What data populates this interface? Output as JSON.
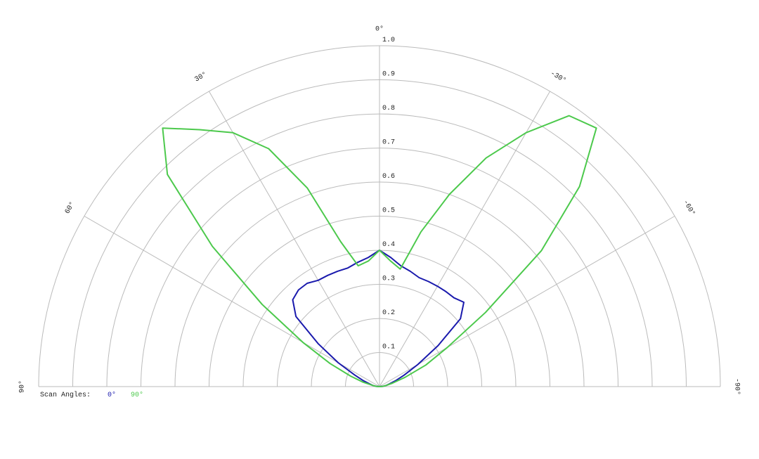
{
  "chart_data": {
    "type": "polar",
    "theta": [
      -90,
      -85,
      -80,
      -75,
      -70,
      -65,
      -60,
      -55,
      -50,
      -45,
      -40,
      -35,
      -30,
      -25,
      -20,
      -15,
      -10,
      -5,
      0,
      5,
      10,
      15,
      20,
      25,
      30,
      35,
      40,
      45,
      50,
      55,
      60,
      65,
      70,
      75,
      80,
      85,
      90
    ],
    "thetaticks": [
      {
        "value": 0,
        "label": "0°"
      },
      {
        "value": 30,
        "label": "30°"
      },
      {
        "value": -30,
        "label": "-30°"
      },
      {
        "value": 60,
        "label": "60°"
      },
      {
        "value": -60,
        "label": "-60°"
      },
      {
        "value": 90,
        "label": "90°"
      },
      {
        "value": -90,
        "label": "-90°"
      }
    ],
    "rlim": [
      0,
      1
    ],
    "rticks": [
      0.1,
      0.2,
      0.3,
      0.4,
      0.5,
      0.6,
      0.7,
      0.8,
      0.9,
      {
        "value": 1,
        "label": "1.0"
      }
    ],
    "legend_title": "Scan Angles:",
    "series": [
      {
        "name": "0°",
        "color": "#1a1aad",
        "values": [
          0,
          0.01,
          0.02,
          0.03,
          0.05,
          0.08,
          0.13,
          0.21,
          0.31,
          0.35,
          0.34,
          0.34,
          0.34,
          0.34,
          0.34,
          0.35,
          0.36,
          0.38,
          0.4,
          0.38,
          0.37,
          0.36,
          0.36,
          0.36,
          0.36,
          0.37,
          0.37,
          0.36,
          0.32,
          0.22,
          0.14,
          0.08,
          0.05,
          0.03,
          0.02,
          0.01,
          0
        ]
      },
      {
        "name": "90°",
        "color": "#4cc94c",
        "values": [
          0,
          0.01,
          0.02,
          0.04,
          0.08,
          0.15,
          0.23,
          0.38,
          0.62,
          0.83,
          0.99,
          0.97,
          0.86,
          0.74,
          0.6,
          0.47,
          0.35,
          0.37,
          0.4,
          0.37,
          0.36,
          0.44,
          0.62,
          0.77,
          0.86,
          0.92,
          0.99,
          0.88,
          0.64,
          0.42,
          0.26,
          0.16,
          0.09,
          0.05,
          0.02,
          0.01,
          0
        ]
      }
    ]
  }
}
